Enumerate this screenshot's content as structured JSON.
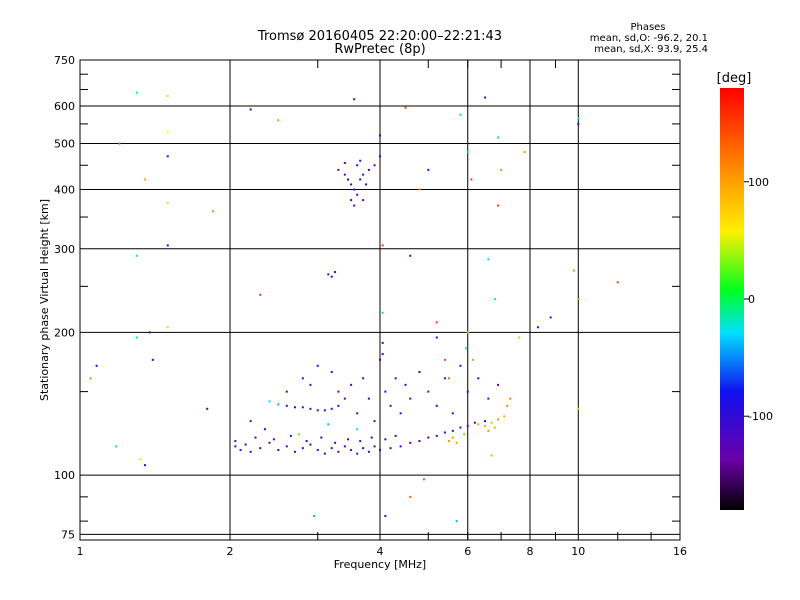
{
  "chart_data": {
    "type": "scatter",
    "title": "Tromsø 20160405 22:20:00–22:21:43",
    "subtitle": "RwPretec (8p)",
    "xlabel": "Frequency [MHz]",
    "ylabel": "Stationary phase Virtual Height [km]",
    "x_scale": "log",
    "y_scale": "log",
    "xlim": [
      1,
      16
    ],
    "ylim": [
      73,
      750
    ],
    "x_ticks": [
      1,
      2,
      4,
      6,
      8,
      10,
      16
    ],
    "x_tick_labels": [
      "1",
      "2",
      "4",
      "6",
      "8",
      "10",
      "16"
    ],
    "y_ticks": [
      75,
      100,
      200,
      300,
      400,
      500,
      600,
      750
    ],
    "y_tick_labels": [
      "75",
      "100",
      "200",
      "300",
      "400",
      "500",
      "600",
      "750"
    ],
    "grid": true,
    "stats": {
      "heading": "Phases",
      "line_o": "mean, sd,O: -96.2, 20.1",
      "line_x": "mean, sd,X:  93.9, 25.4"
    },
    "colorbar": {
      "label": "[deg]",
      "range": [
        -180,
        180
      ],
      "ticks": [
        100,
        0,
        -100
      ],
      "tick_labels": [
        "100",
        "0",
        "-100"
      ]
    },
    "colors": {
      "o_mode": "#2b2bd8",
      "x_mode": "#f0d400",
      "grid": "#000000"
    },
    "points": [
      {
        "x": 2.05,
        "y": 115,
        "p": -110
      },
      {
        "x": 2.1,
        "y": 113,
        "p": -105
      },
      {
        "x": 2.15,
        "y": 116,
        "p": -100
      },
      {
        "x": 2.2,
        "y": 112,
        "p": -115
      },
      {
        "x": 2.3,
        "y": 114,
        "p": -98
      },
      {
        "x": 2.4,
        "y": 117,
        "p": -120
      },
      {
        "x": 2.5,
        "y": 113,
        "p": -95
      },
      {
        "x": 2.6,
        "y": 115,
        "p": -108
      },
      {
        "x": 2.7,
        "y": 112,
        "p": -112
      },
      {
        "x": 2.8,
        "y": 114,
        "p": -90
      },
      {
        "x": 2.9,
        "y": 116,
        "p": -102
      },
      {
        "x": 3.0,
        "y": 113,
        "p": -118
      },
      {
        "x": 3.1,
        "y": 111,
        "p": -97
      },
      {
        "x": 3.2,
        "y": 114,
        "p": -106
      },
      {
        "x": 3.3,
        "y": 112,
        "p": -113
      },
      {
        "x": 3.4,
        "y": 115,
        "p": -99
      },
      {
        "x": 3.5,
        "y": 113,
        "p": -104
      },
      {
        "x": 3.6,
        "y": 111,
        "p": -121
      },
      {
        "x": 3.7,
        "y": 114,
        "p": -93
      },
      {
        "x": 3.8,
        "y": 112,
        "p": -109
      },
      {
        "x": 3.9,
        "y": 115,
        "p": -101
      },
      {
        "x": 4.0,
        "y": 113,
        "p": -116
      },
      {
        "x": 4.2,
        "y": 114,
        "p": -96
      },
      {
        "x": 4.4,
        "y": 115,
        "p": -103
      },
      {
        "x": 4.6,
        "y": 117,
        "p": -111
      },
      {
        "x": 4.8,
        "y": 118,
        "p": -94
      },
      {
        "x": 5.0,
        "y": 120,
        "p": -107
      },
      {
        "x": 5.2,
        "y": 121,
        "p": -100
      },
      {
        "x": 5.4,
        "y": 123,
        "p": -114
      },
      {
        "x": 5.6,
        "y": 124,
        "p": -98
      },
      {
        "x": 5.8,
        "y": 126,
        "p": -105
      },
      {
        "x": 6.0,
        "y": 127,
        "p": -110
      },
      {
        "x": 6.2,
        "y": 129,
        "p": -95
      },
      {
        "x": 6.5,
        "y": 130,
        "p": -102
      },
      {
        "x": 2.05,
        "y": 118,
        "p": -125
      },
      {
        "x": 2.25,
        "y": 120,
        "p": -88
      },
      {
        "x": 2.45,
        "y": 119,
        "p": -130
      },
      {
        "x": 2.65,
        "y": 121,
        "p": -85
      },
      {
        "x": 2.85,
        "y": 118,
        "p": -122
      },
      {
        "x": 3.05,
        "y": 120,
        "p": -90
      },
      {
        "x": 3.25,
        "y": 117,
        "p": -128
      },
      {
        "x": 3.45,
        "y": 119,
        "p": -92
      },
      {
        "x": 3.65,
        "y": 118,
        "p": -119
      },
      {
        "x": 3.85,
        "y": 120,
        "p": -87
      },
      {
        "x": 4.1,
        "y": 119,
        "p": -124
      },
      {
        "x": 4.3,
        "y": 121,
        "p": -91
      },
      {
        "x": 2.6,
        "y": 140,
        "p": -100
      },
      {
        "x": 2.7,
        "y": 139,
        "p": -95
      },
      {
        "x": 2.8,
        "y": 139,
        "p": -105
      },
      {
        "x": 2.9,
        "y": 138,
        "p": -99
      },
      {
        "x": 3.0,
        "y": 137,
        "p": -108
      },
      {
        "x": 3.1,
        "y": 137,
        "p": -97
      },
      {
        "x": 3.2,
        "y": 138,
        "p": -103
      },
      {
        "x": 3.3,
        "y": 140,
        "p": -110
      },
      {
        "x": 2.5,
        "y": 141,
        "p": -40
      },
      {
        "x": 2.4,
        "y": 143,
        "p": -30
      },
      {
        "x": 2.6,
        "y": 150,
        "p": -110
      },
      {
        "x": 2.8,
        "y": 160,
        "p": -100
      },
      {
        "x": 2.9,
        "y": 155,
        "p": -120
      },
      {
        "x": 3.0,
        "y": 170,
        "p": -95
      },
      {
        "x": 3.2,
        "y": 165,
        "p": -105
      },
      {
        "x": 3.3,
        "y": 150,
        "p": -115
      },
      {
        "x": 3.4,
        "y": 145,
        "p": -98
      },
      {
        "x": 3.5,
        "y": 155,
        "p": -108
      },
      {
        "x": 3.6,
        "y": 135,
        "p": -112
      },
      {
        "x": 3.7,
        "y": 160,
        "p": -96
      },
      {
        "x": 3.8,
        "y": 145,
        "p": -104
      },
      {
        "x": 3.9,
        "y": 130,
        "p": -118
      },
      {
        "x": 4.0,
        "y": 175,
        "p": -92
      },
      {
        "x": 4.1,
        "y": 150,
        "p": -106
      },
      {
        "x": 4.2,
        "y": 140,
        "p": -111
      },
      {
        "x": 4.3,
        "y": 160,
        "p": -99
      },
      {
        "x": 4.4,
        "y": 135,
        "p": -113
      },
      {
        "x": 4.5,
        "y": 155,
        "p": -101
      },
      {
        "x": 4.6,
        "y": 145,
        "p": -109
      },
      {
        "x": 4.8,
        "y": 165,
        "p": -97
      },
      {
        "x": 5.0,
        "y": 150,
        "p": -115
      },
      {
        "x": 5.2,
        "y": 140,
        "p": -103
      },
      {
        "x": 5.4,
        "y": 160,
        "p": -107
      },
      {
        "x": 5.6,
        "y": 135,
        "p": -100
      },
      {
        "x": 5.8,
        "y": 170,
        "p": -112
      },
      {
        "x": 6.0,
        "y": 150,
        "p": -96
      },
      {
        "x": 6.3,
        "y": 160,
        "p": -105
      },
      {
        "x": 6.6,
        "y": 145,
        "p": -110
      },
      {
        "x": 6.9,
        "y": 155,
        "p": -99
      },
      {
        "x": 2.2,
        "y": 130,
        "p": -125
      },
      {
        "x": 2.35,
        "y": 125,
        "p": -90
      },
      {
        "x": 3.15,
        "y": 128,
        "p": -40
      },
      {
        "x": 4.05,
        "y": 180,
        "p": -100
      },
      {
        "x": 4.05,
        "y": 190,
        "p": -110
      },
      {
        "x": 5.2,
        "y": 195,
        "p": -95
      },
      {
        "x": 3.6,
        "y": 125,
        "p": -20
      },
      {
        "x": 2.75,
        "y": 122,
        "p": 30
      },
      {
        "x": 5.5,
        "y": 118,
        "p": 105
      },
      {
        "x": 5.6,
        "y": 120,
        "p": 110
      },
      {
        "x": 5.7,
        "y": 117,
        "p": 100
      },
      {
        "x": 6.3,
        "y": 128,
        "p": 95
      },
      {
        "x": 6.5,
        "y": 127,
        "p": 100
      },
      {
        "x": 6.7,
        "y": 129,
        "p": 90
      },
      {
        "x": 6.9,
        "y": 131,
        "p": 105
      },
      {
        "x": 7.1,
        "y": 133,
        "p": 98
      },
      {
        "x": 6.6,
        "y": 124,
        "p": 108
      },
      {
        "x": 6.8,
        "y": 126,
        "p": 93
      },
      {
        "x": 5.9,
        "y": 122,
        "p": 101
      },
      {
        "x": 7.2,
        "y": 140,
        "p": 115
      },
      {
        "x": 7.3,
        "y": 145,
        "p": 120
      },
      {
        "x": 5.5,
        "y": 160,
        "p": 130
      },
      {
        "x": 5.4,
        "y": 175,
        "p": 140
      },
      {
        "x": 6.7,
        "y": 110,
        "p": 100
      },
      {
        "x": 4.6,
        "y": 90,
        "p": 135
      },
      {
        "x": 3.3,
        "y": 440,
        "p": -100
      },
      {
        "x": 3.4,
        "y": 430,
        "p": -110
      },
      {
        "x": 3.45,
        "y": 420,
        "p": -95
      },
      {
        "x": 3.5,
        "y": 410,
        "p": -105
      },
      {
        "x": 3.55,
        "y": 400,
        "p": -115
      },
      {
        "x": 3.6,
        "y": 390,
        "p": -98
      },
      {
        "x": 3.65,
        "y": 420,
        "p": -108
      },
      {
        "x": 3.7,
        "y": 430,
        "p": -112
      },
      {
        "x": 3.75,
        "y": 410,
        "p": -96
      },
      {
        "x": 3.5,
        "y": 380,
        "p": -104
      },
      {
        "x": 3.55,
        "y": 370,
        "p": -118
      },
      {
        "x": 3.6,
        "y": 450,
        "p": -92
      },
      {
        "x": 3.65,
        "y": 460,
        "p": -106
      },
      {
        "x": 3.7,
        "y": 380,
        "p": -111
      },
      {
        "x": 3.8,
        "y": 440,
        "p": -99
      },
      {
        "x": 3.9,
        "y": 450,
        "p": -113
      },
      {
        "x": 4.0,
        "y": 470,
        "p": -101
      },
      {
        "x": 4.0,
        "y": 520,
        "p": -109
      },
      {
        "x": 3.4,
        "y": 455,
        "p": -97
      },
      {
        "x": 3.15,
        "y": 265,
        "p": -105
      },
      {
        "x": 3.2,
        "y": 262,
        "p": -100
      },
      {
        "x": 3.25,
        "y": 268,
        "p": -110
      },
      {
        "x": 1.05,
        "y": 160,
        "p": 120
      },
      {
        "x": 1.08,
        "y": 170,
        "p": -100
      },
      {
        "x": 1.2,
        "y": 500,
        "p": 140
      },
      {
        "x": 1.3,
        "y": 640,
        "p": -20
      },
      {
        "x": 1.3,
        "y": 195,
        "p": -20
      },
      {
        "x": 1.3,
        "y": 290,
        "p": -10
      },
      {
        "x": 1.32,
        "y": 108,
        "p": 60
      },
      {
        "x": 1.35,
        "y": 420,
        "p": 100
      },
      {
        "x": 1.38,
        "y": 200,
        "p": -110
      },
      {
        "x": 1.4,
        "y": 175,
        "p": -100
      },
      {
        "x": 1.5,
        "y": 630,
        "p": 50
      },
      {
        "x": 1.5,
        "y": 530,
        "p": 60
      },
      {
        "x": 1.5,
        "y": 470,
        "p": -100
      },
      {
        "x": 1.5,
        "y": 375,
        "p": 45
      },
      {
        "x": 1.5,
        "y": 305,
        "p": -105
      },
      {
        "x": 1.5,
        "y": 205,
        "p": 40
      },
      {
        "x": 1.35,
        "y": 105,
        "p": -100
      },
      {
        "x": 1.18,
        "y": 115,
        "p": -20
      },
      {
        "x": 1.8,
        "y": 138,
        "p": -100
      },
      {
        "x": 1.85,
        "y": 360,
        "p": 110
      },
      {
        "x": 2.2,
        "y": 590,
        "p": -110
      },
      {
        "x": 2.3,
        "y": 240,
        "p": 150
      },
      {
        "x": 2.5,
        "y": 560,
        "p": 110
      },
      {
        "x": 2.95,
        "y": 82,
        "p": -40
      },
      {
        "x": 3.55,
        "y": 620,
        "p": -110
      },
      {
        "x": 4.05,
        "y": 305,
        "p": 150
      },
      {
        "x": 4.05,
        "y": 220,
        "p": -20
      },
      {
        "x": 4.6,
        "y": 290,
        "p": -100
      },
      {
        "x": 4.5,
        "y": 595,
        "p": 150
      },
      {
        "x": 4.1,
        "y": 82,
        "p": -110
      },
      {
        "x": 4.8,
        "y": 400,
        "p": 110
      },
      {
        "x": 5.0,
        "y": 440,
        "p": -100
      },
      {
        "x": 5.2,
        "y": 210,
        "p": 150
      },
      {
        "x": 5.7,
        "y": 80,
        "p": -40
      },
      {
        "x": 5.8,
        "y": 575,
        "p": -20
      },
      {
        "x": 6.0,
        "y": 480,
        "p": -20
      },
      {
        "x": 6.1,
        "y": 420,
        "p": 150
      },
      {
        "x": 6.5,
        "y": 625,
        "p": -110
      },
      {
        "x": 6.9,
        "y": 515,
        "p": -20
      },
      {
        "x": 6.9,
        "y": 370,
        "p": 150
      },
      {
        "x": 7.0,
        "y": 440,
        "p": 110
      },
      {
        "x": 6.6,
        "y": 285,
        "p": -20
      },
      {
        "x": 6.8,
        "y": 235,
        "p": -20
      },
      {
        "x": 7.6,
        "y": 195,
        "p": 40
      },
      {
        "x": 7.8,
        "y": 480,
        "p": 110
      },
      {
        "x": 8.3,
        "y": 205,
        "p": -110
      },
      {
        "x": 8.8,
        "y": 215,
        "p": -110
      },
      {
        "x": 9.8,
        "y": 270,
        "p": 110
      },
      {
        "x": 10.0,
        "y": 565,
        "p": -20
      },
      {
        "x": 10.0,
        "y": 550,
        "p": -110
      },
      {
        "x": 10.0,
        "y": 138,
        "p": 80
      },
      {
        "x": 10.0,
        "y": 235,
        "p": 110
      },
      {
        "x": 12.0,
        "y": 255,
        "p": 150
      },
      {
        "x": 6.0,
        "y": 200,
        "p": 40
      },
      {
        "x": 5.95,
        "y": 185,
        "p": -20
      },
      {
        "x": 6.15,
        "y": 175,
        "p": 110
      },
      {
        "x": 4.9,
        "y": 98,
        "p": 140
      }
    ]
  }
}
